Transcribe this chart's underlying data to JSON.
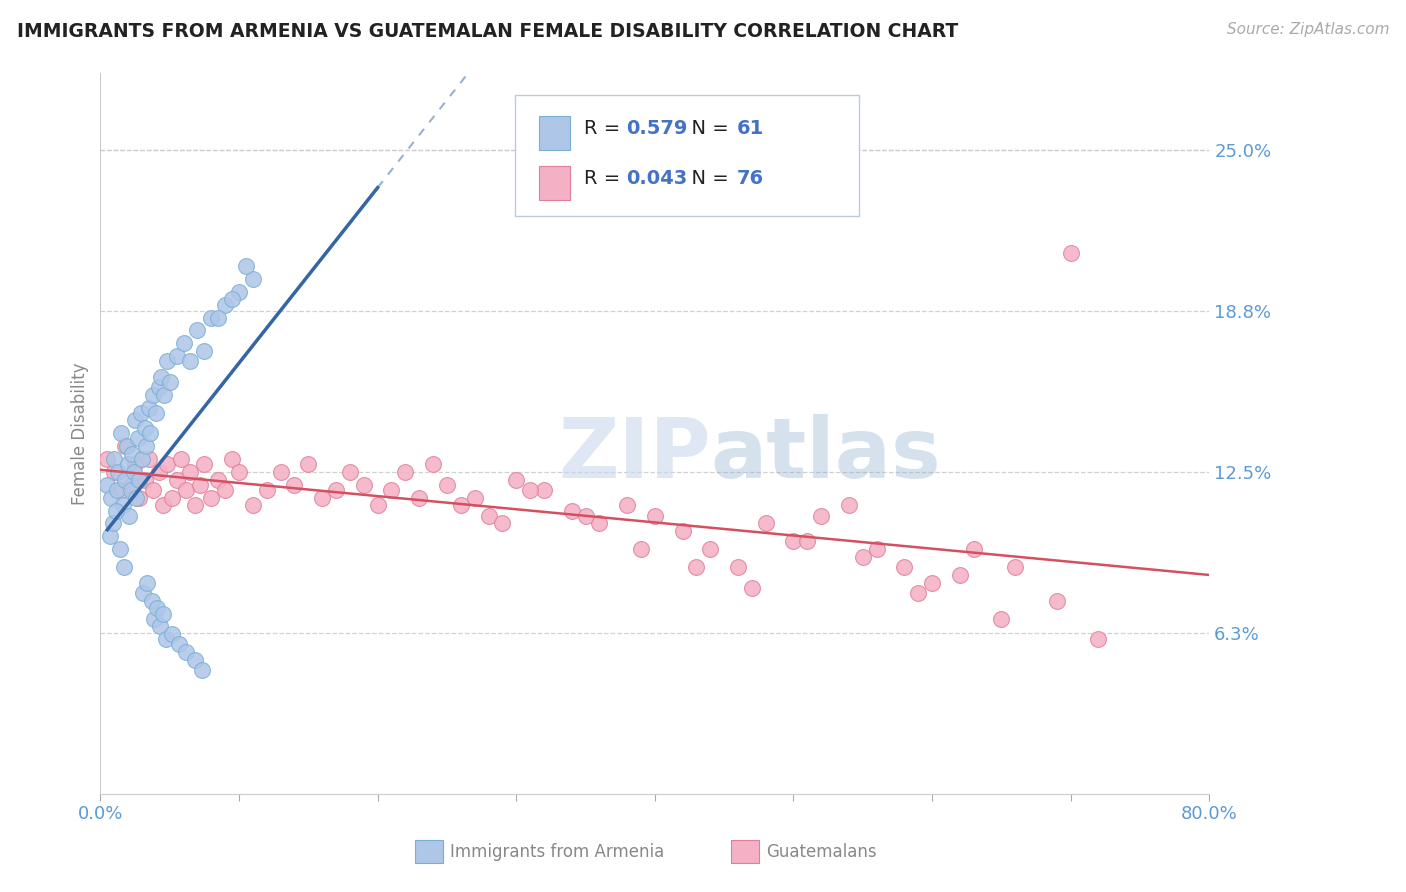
{
  "title": "IMMIGRANTS FROM ARMENIA VS GUATEMALAN FEMALE DISABILITY CORRELATION CHART",
  "source": "Source: ZipAtlas.com",
  "ylabel": "Female Disability",
  "xlim": [
    0.0,
    0.8
  ],
  "ylim": [
    0.0,
    0.28
  ],
  "armenia_R": 0.579,
  "armenia_N": 61,
  "guatemala_R": 0.043,
  "guatemala_N": 76,
  "armenia_color": "#aec6e8",
  "armenia_edge_color": "#7aafd4",
  "guatemala_color": "#f4b0c4",
  "guatemala_edge_color": "#e08098",
  "armenia_line_color": "#3465a4",
  "guatemala_line_color": "#d45060",
  "title_color": "#222222",
  "tick_label_color": "#5b9bd5",
  "grid_color": "#cccccc",
  "background_color": "#ffffff",
  "legend_text_color": "#4472C4",
  "watermark_color": "#c8d8ec",
  "armenia_x": [
    0.005,
    0.008,
    0.01,
    0.012,
    0.013,
    0.015,
    0.016,
    0.018,
    0.019,
    0.02,
    0.021,
    0.022,
    0.023,
    0.024,
    0.025,
    0.026,
    0.027,
    0.028,
    0.029,
    0.03,
    0.032,
    0.033,
    0.035,
    0.036,
    0.038,
    0.04,
    0.042,
    0.044,
    0.046,
    0.048,
    0.05,
    0.055,
    0.06,
    0.065,
    0.07,
    0.075,
    0.08,
    0.09,
    0.1,
    0.11,
    0.007,
    0.009,
    0.011,
    0.014,
    0.017,
    0.031,
    0.034,
    0.037,
    0.039,
    0.041,
    0.043,
    0.045,
    0.047,
    0.052,
    0.057,
    0.062,
    0.068,
    0.073,
    0.085,
    0.095,
    0.105
  ],
  "armenia_y": [
    0.12,
    0.115,
    0.13,
    0.118,
    0.125,
    0.14,
    0.112,
    0.122,
    0.135,
    0.128,
    0.108,
    0.118,
    0.132,
    0.125,
    0.145,
    0.115,
    0.138,
    0.122,
    0.148,
    0.13,
    0.142,
    0.135,
    0.15,
    0.14,
    0.155,
    0.148,
    0.158,
    0.162,
    0.155,
    0.168,
    0.16,
    0.17,
    0.175,
    0.168,
    0.18,
    0.172,
    0.185,
    0.19,
    0.195,
    0.2,
    0.1,
    0.105,
    0.11,
    0.095,
    0.088,
    0.078,
    0.082,
    0.075,
    0.068,
    0.072,
    0.065,
    0.07,
    0.06,
    0.062,
    0.058,
    0.055,
    0.052,
    0.048,
    0.185,
    0.192,
    0.205
  ],
  "guatemala_x": [
    0.005,
    0.01,
    0.015,
    0.018,
    0.022,
    0.025,
    0.028,
    0.032,
    0.035,
    0.038,
    0.042,
    0.045,
    0.048,
    0.052,
    0.055,
    0.058,
    0.062,
    0.065,
    0.068,
    0.072,
    0.075,
    0.08,
    0.085,
    0.09,
    0.095,
    0.1,
    0.11,
    0.12,
    0.13,
    0.14,
    0.15,
    0.16,
    0.17,
    0.18,
    0.19,
    0.2,
    0.21,
    0.22,
    0.23,
    0.24,
    0.25,
    0.26,
    0.27,
    0.28,
    0.29,
    0.3,
    0.32,
    0.34,
    0.36,
    0.38,
    0.4,
    0.42,
    0.44,
    0.46,
    0.48,
    0.5,
    0.52,
    0.54,
    0.56,
    0.58,
    0.6,
    0.63,
    0.66,
    0.69,
    0.72,
    0.31,
    0.35,
    0.39,
    0.43,
    0.47,
    0.51,
    0.55,
    0.59,
    0.62,
    0.65,
    0.7
  ],
  "guatemala_y": [
    0.13,
    0.125,
    0.118,
    0.135,
    0.12,
    0.128,
    0.115,
    0.122,
    0.13,
    0.118,
    0.125,
    0.112,
    0.128,
    0.115,
    0.122,
    0.13,
    0.118,
    0.125,
    0.112,
    0.12,
    0.128,
    0.115,
    0.122,
    0.118,
    0.13,
    0.125,
    0.112,
    0.118,
    0.125,
    0.12,
    0.128,
    0.115,
    0.118,
    0.125,
    0.12,
    0.112,
    0.118,
    0.125,
    0.115,
    0.128,
    0.12,
    0.112,
    0.115,
    0.108,
    0.105,
    0.122,
    0.118,
    0.11,
    0.105,
    0.112,
    0.108,
    0.102,
    0.095,
    0.088,
    0.105,
    0.098,
    0.108,
    0.112,
    0.095,
    0.088,
    0.082,
    0.095,
    0.088,
    0.075,
    0.06,
    0.118,
    0.108,
    0.095,
    0.088,
    0.08,
    0.098,
    0.092,
    0.078,
    0.085,
    0.068,
    0.21
  ],
  "ytick_vals": [
    0.0625,
    0.125,
    0.1875,
    0.25
  ],
  "ytick_labels": [
    "6.3%",
    "12.5%",
    "18.8%",
    "25.0%"
  ],
  "xtick_vals": [
    0.0,
    0.1,
    0.2,
    0.3,
    0.4,
    0.5,
    0.6,
    0.7,
    0.8
  ],
  "xtick_labels": [
    "0.0%",
    "",
    "",
    "",
    "",
    "",
    "",
    "",
    "80.0%"
  ]
}
